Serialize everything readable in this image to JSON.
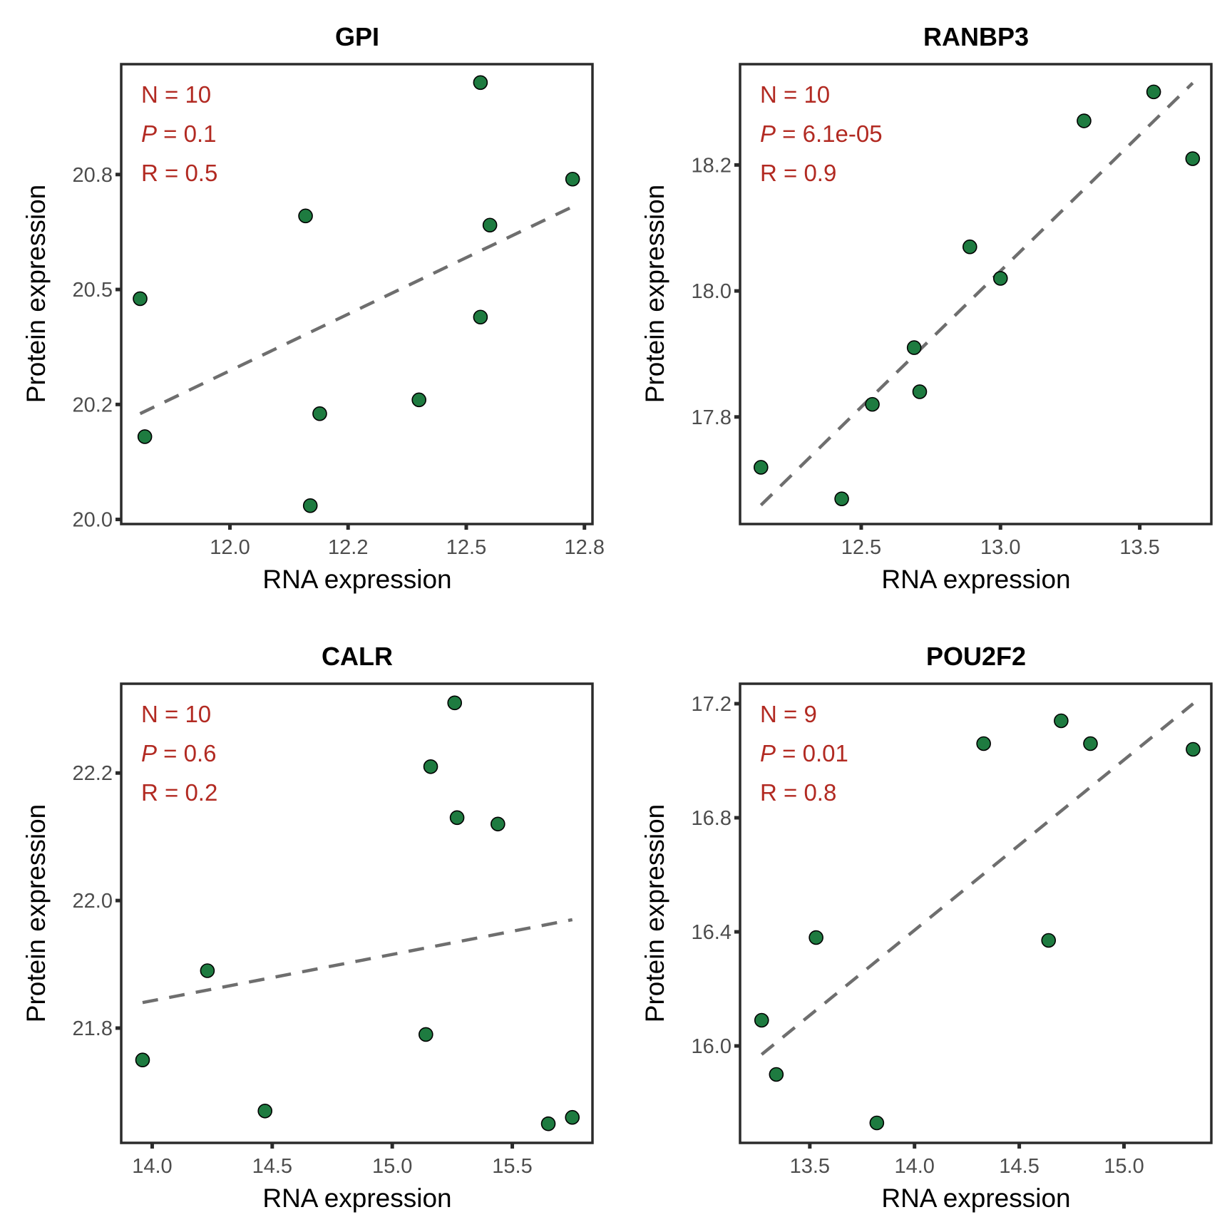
{
  "style": {
    "point_fill": "#1e7b40",
    "point_stroke": "#000000",
    "trend_color": "#6e6e6e",
    "stat_color": "#b22a22"
  },
  "chart_data": [
    {
      "type": "scatter",
      "title": "GPI",
      "xlabel": "RNA expression",
      "ylabel": "Protein expression",
      "xlim": [
        11.77,
        12.767
      ],
      "ylim": [
        19.99,
        20.99
      ],
      "xticks": [
        12.0,
        12.25,
        12.5,
        12.75
      ],
      "xtick_labels": [
        "12.0",
        "12.2",
        "12.5",
        "12.8"
      ],
      "yticks": [
        20.0,
        20.25,
        20.5,
        20.75
      ],
      "ytick_labels": [
        "20.0",
        "20.2",
        "20.5",
        "20.8"
      ],
      "stats": {
        "n_label": "N = 10",
        "p_symbol": "P",
        "p_value": " = 0.1",
        "r_label": "R = 0.5"
      },
      "x": [
        12.53,
        12.725,
        12.16,
        12.55,
        11.81,
        12.53,
        12.4,
        12.19,
        11.82,
        12.17
      ],
      "y": [
        20.95,
        20.74,
        20.66,
        20.64,
        20.48,
        20.44,
        20.26,
        20.23,
        20.18,
        20.03
      ],
      "trend": {
        "x": [
          11.81,
          12.725
        ],
        "y": [
          20.23,
          20.68
        ],
        "style": "dashed"
      },
      "grid": false
    },
    {
      "type": "scatter",
      "title": "RANBP3",
      "xlabel": "RNA expression",
      "ylabel": "Protein expression",
      "xlim": [
        12.065,
        13.757
      ],
      "ylim": [
        17.63,
        18.36
      ],
      "xticks": [
        12.5,
        13.0,
        13.5
      ],
      "xtick_labels": [
        "12.5",
        "13.0",
        "13.5"
      ],
      "yticks": [
        17.8,
        18.0,
        18.2
      ],
      "ytick_labels": [
        "17.8",
        "18.0",
        "18.2"
      ],
      "stats": {
        "n_label": "N = 10",
        "p_symbol": "P",
        "p_value": " = 6.1e-05",
        "r_label": "R = 0.9"
      },
      "x": [
        13.55,
        13.3,
        13.69,
        12.89,
        13.0,
        12.69,
        12.71,
        12.54,
        12.14,
        12.43
      ],
      "y": [
        18.316,
        18.27,
        18.21,
        18.07,
        18.02,
        17.91,
        17.84,
        17.82,
        17.72,
        17.67
      ],
      "trend": {
        "x": [
          12.14,
          13.69
        ],
        "y": [
          17.66,
          18.33
        ],
        "style": "dashed"
      },
      "grid": false
    },
    {
      "type": "scatter",
      "title": "CALR",
      "xlabel": "RNA expression",
      "ylabel": "Protein expression",
      "xlim": [
        13.871,
        15.834
      ],
      "ylim": [
        21.62,
        22.34
      ],
      "xticks": [
        14.0,
        14.5,
        15.0,
        15.5
      ],
      "xtick_labels": [
        "14.0",
        "14.5",
        "15.0",
        "15.5"
      ],
      "yticks": [
        21.8,
        22.0,
        22.2
      ],
      "ytick_labels": [
        "21.8",
        "22.0",
        "22.2"
      ],
      "stats": {
        "n_label": "N = 10",
        "p_symbol": "P",
        "p_value": " = 0.6",
        "r_label": "R = 0.2"
      },
      "x": [
        15.26,
        15.16,
        15.27,
        15.44,
        14.23,
        15.14,
        13.96,
        14.47,
        15.65,
        15.75
      ],
      "y": [
        22.31,
        22.21,
        22.13,
        22.12,
        21.89,
        21.79,
        21.75,
        21.67,
        21.65,
        21.66
      ],
      "trend": {
        "x": [
          13.96,
          15.75
        ],
        "y": [
          21.84,
          21.97
        ],
        "style": "dashed"
      },
      "grid": false
    },
    {
      "type": "scatter",
      "title": "POU2F2",
      "xlabel": "RNA expression",
      "ylabel": "Protein expression",
      "xlim": [
        13.167,
        15.417
      ],
      "ylim": [
        15.66,
        17.27
      ],
      "xticks": [
        13.5,
        14.0,
        14.5,
        15.0
      ],
      "xtick_labels": [
        "13.5",
        "14.0",
        "14.5",
        "15.0"
      ],
      "yticks": [
        16.0,
        16.4,
        16.8,
        17.2
      ],
      "ytick_labels": [
        "16.0",
        "16.4",
        "16.8",
        "17.2"
      ],
      "stats": {
        "n_label": "N = 9",
        "p_symbol": "P",
        "p_value": " = 0.01",
        "r_label": "R = 0.8"
      },
      "x": [
        14.7,
        14.33,
        14.84,
        15.33,
        13.53,
        14.64,
        13.27,
        13.34,
        13.82
      ],
      "y": [
        17.14,
        17.06,
        17.06,
        17.04,
        16.38,
        16.37,
        16.09,
        15.9,
        15.73
      ],
      "trend": {
        "x": [
          13.27,
          15.33
        ],
        "y": [
          15.97,
          17.2
        ],
        "style": "dashed"
      },
      "grid": false
    }
  ]
}
